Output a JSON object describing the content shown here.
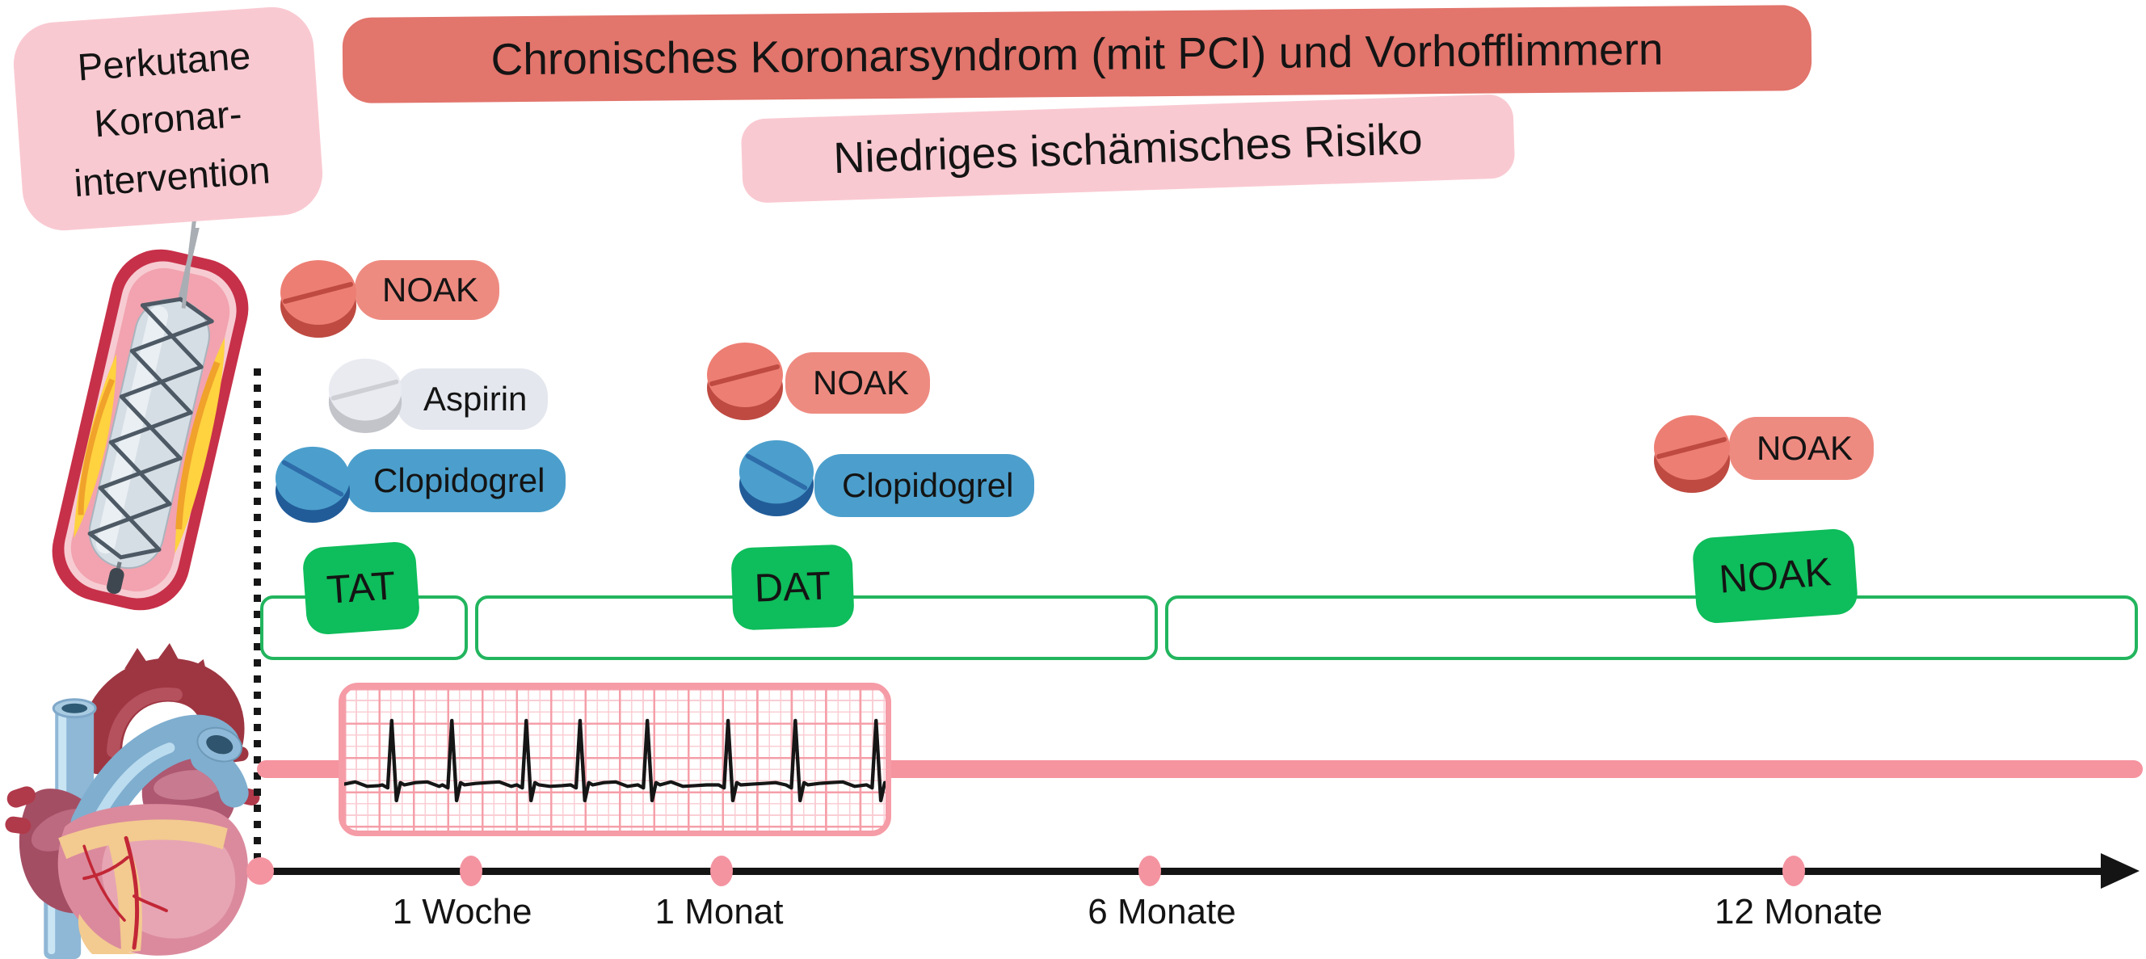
{
  "header": {
    "pci_lines": [
      "Perkutane",
      "Koronar-",
      "intervention"
    ],
    "title": "Chronisches Koronarsyndrom (mit PCI) und Vorhofflimmern",
    "subtitle": "Niedriges ischämisches Risiko"
  },
  "medications": {
    "start": [
      {
        "label": "NOAK",
        "pill_color": "#ed7e73"
      },
      {
        "label": "Aspirin",
        "pill_color": "#e9ebf1"
      },
      {
        "label": "Clopidogrel",
        "pill_color": "#4c9fcc"
      }
    ],
    "month1": [
      {
        "label": "NOAK",
        "pill_color": "#ed7e73"
      },
      {
        "label": "Clopidogrel",
        "pill_color": "#4c9fcc"
      }
    ],
    "month12": [
      {
        "label": "NOAK",
        "pill_color": "#ed7e73"
      }
    ]
  },
  "therapy_phases": [
    {
      "label": "TAT"
    },
    {
      "label": "DAT"
    },
    {
      "label": "NOAK"
    }
  ],
  "timeline": {
    "tick_labels": [
      "1 Woche",
      "1 Monat",
      "6 Monate",
      "12 Monate"
    ]
  },
  "icons": {
    "stent": "stent-in-vessel-illustration",
    "heart": "heart-illustration",
    "ecg": "atrial-fibrillation-ecg-strip",
    "pill": "pill-icon"
  },
  "colors": {
    "title_banner": "#e2756c",
    "pink_badge": "#f9c9d1",
    "noak_pill": "#ed7e73",
    "aspirin_pill": "#e9ebf1",
    "clopidogrel_pill": "#4c9fcc",
    "phase_badge_green": "#0ebd5b",
    "phase_box_border": "#22b55e",
    "rhythm_bar_pink": "#f5939f",
    "ecg_grid": "#f59ca6",
    "timeline_dot": "#f494a1"
  }
}
